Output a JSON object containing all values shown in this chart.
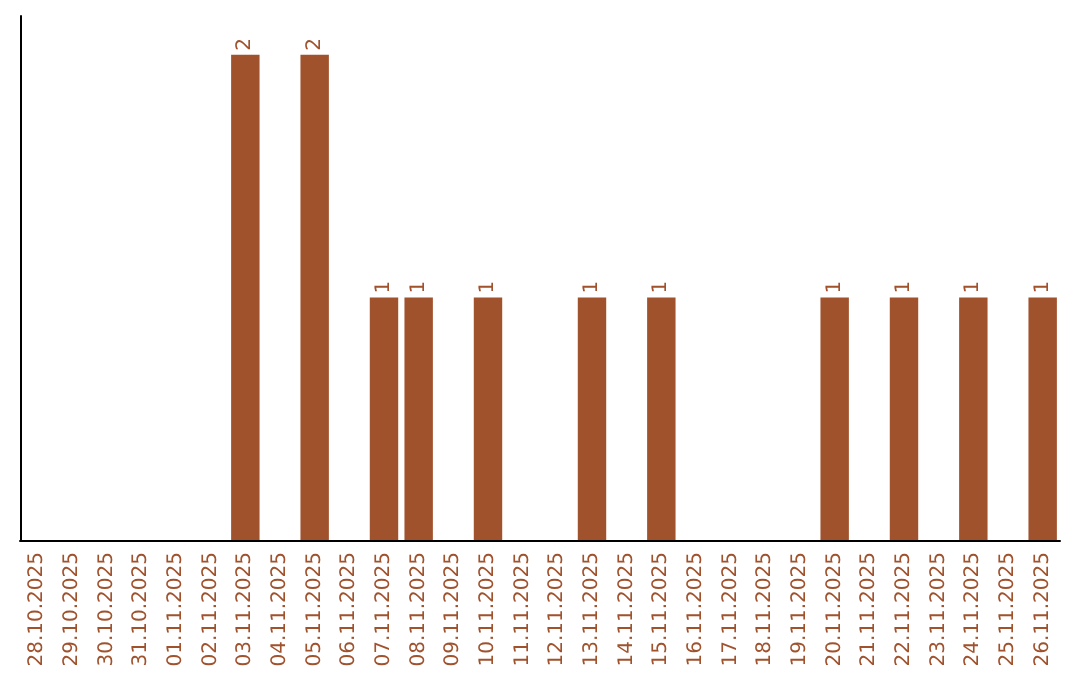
{
  "chart_data": {
    "type": "bar",
    "categories": [
      "28.10.2025",
      "29.10.2025",
      "30.10.2025",
      "31.10.2025",
      "01.11.2025",
      "02.11.2025",
      "03.11.2025",
      "04.11.2025",
      "05.11.2025",
      "06.11.2025",
      "07.11.2025",
      "08.11.2025",
      "09.11.2025",
      "10.11.2025",
      "11.11.2025",
      "12.11.2025",
      "13.11.2025",
      "14.11.2025",
      "15.11.2025",
      "16.11.2025",
      "17.11.2025",
      "18.11.2025",
      "19.11.2025",
      "20.11.2025",
      "21.11.2025",
      "22.11.2025",
      "23.11.2025",
      "24.11.2025",
      "25.11.2025",
      "26.11.2025"
    ],
    "values": [
      0,
      0,
      0,
      0,
      0,
      0,
      2,
      0,
      2,
      0,
      1,
      1,
      0,
      1,
      0,
      0,
      1,
      0,
      1,
      0,
      0,
      0,
      0,
      1,
      0,
      1,
      0,
      1,
      0,
      1
    ],
    "value_labels": [
      null,
      null,
      null,
      null,
      null,
      null,
      "2",
      null,
      "2",
      null,
      "1",
      "1",
      null,
      "1",
      null,
      null,
      "1",
      null,
      "1",
      null,
      null,
      null,
      null,
      "1",
      null,
      "1",
      null,
      "1",
      null,
      "1"
    ],
    "color": "#a0522d",
    "grid": false,
    "tick_labels": "x"
  }
}
